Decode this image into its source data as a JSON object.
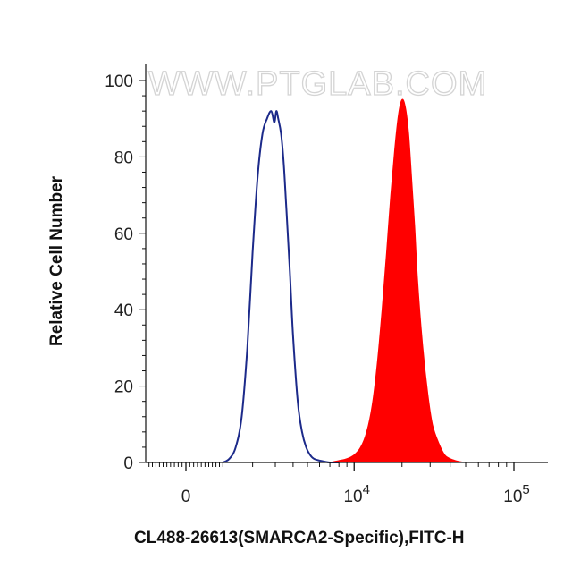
{
  "chart_data": {
    "type": "area",
    "xlabel": "CL488-26613(SMARCA2-Specific),FITC-H",
    "ylabel": "Relative Cell Number",
    "watermark": "WWW.PTGLAB.COM",
    "x_scale": "biexponential",
    "xlim": [
      -1500,
      150000
    ],
    "ylim": [
      0,
      100
    ],
    "y_ticks": [
      "0",
      "20",
      "40",
      "60",
      "80",
      "100"
    ],
    "x_ticks": [
      {
        "base": "0",
        "exp": ""
      },
      {
        "base": "10",
        "exp": "4"
      },
      {
        "base": "10",
        "exp": "5"
      }
    ],
    "grid": false,
    "series": [
      {
        "role": "control",
        "style": "outline",
        "color": "#1c2a8a",
        "x": [
          1000,
          1200,
          1400,
          1600,
          1800,
          2000,
          2200,
          2400,
          2600,
          2800,
          2950,
          3050,
          3150,
          3300,
          3450,
          3600,
          3800,
          4000,
          4300,
          4600,
          4900,
          5200,
          5500,
          6000,
          6500,
          7000,
          8000
        ],
        "y": [
          0,
          1,
          4,
          12,
          30,
          55,
          75,
          86,
          90,
          92,
          89,
          92,
          90,
          86,
          78,
          66,
          50,
          33,
          16,
          8,
          4,
          2,
          1,
          0.5,
          0.2,
          0,
          0
        ]
      },
      {
        "role": "stained",
        "style": "filled",
        "color": "#ff0000",
        "x": [
          7000,
          8000,
          9000,
          10000,
          11000,
          12000,
          13000,
          14000,
          15000,
          16000,
          17000,
          18000,
          19000,
          20000,
          21000,
          22000,
          23000,
          24000,
          25000,
          27000,
          29000,
          31000,
          34000,
          37000,
          40000,
          45000,
          50000
        ],
        "y": [
          0,
          0.5,
          1,
          2,
          4,
          8,
          15,
          26,
          40,
          55,
          70,
          82,
          91,
          95,
          93,
          86,
          74,
          62,
          48,
          30,
          18,
          10,
          5,
          2,
          1,
          0.3,
          0
        ]
      }
    ]
  }
}
